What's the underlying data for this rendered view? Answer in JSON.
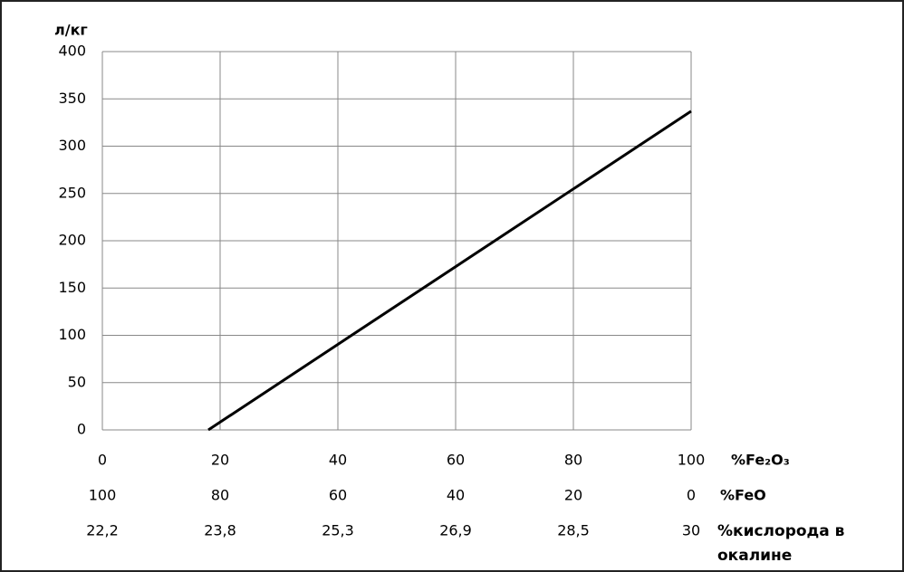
{
  "chart_data": {
    "type": "line",
    "ylabel": "л/кг",
    "xlabel": "%Fe₂O₃",
    "series": [
      {
        "x": [
          18,
          100
        ],
        "values": [
          0,
          337
        ],
        "color": "#000000"
      }
    ],
    "xlim": [
      0,
      100
    ],
    "xticks": [
      0,
      20,
      40,
      60,
      80,
      100
    ],
    "ylim": [
      0,
      400
    ],
    "yticks": [
      0,
      50,
      100,
      150,
      200,
      250,
      300,
      350,
      400
    ],
    "grid": true,
    "extra_x_axes": [
      {
        "label": "%FeO",
        "ticks": [
          {
            "value": 0,
            "label": "100"
          },
          {
            "value": 20,
            "label": "80"
          },
          {
            "value": 40,
            "label": "60"
          },
          {
            "value": 60,
            "label": "40"
          },
          {
            "value": 80,
            "label": "20"
          },
          {
            "value": 100,
            "label": "0"
          }
        ]
      },
      {
        "label": "%кислорода в окалине",
        "ticks": [
          {
            "value": 0,
            "label": "22,2"
          },
          {
            "value": 20,
            "label": "23,8"
          },
          {
            "value": 40,
            "label": "25,3"
          },
          {
            "value": 60,
            "label": "26,9"
          },
          {
            "value": 80,
            "label": "28,5"
          },
          {
            "value": 100,
            "label": "30"
          }
        ]
      }
    ]
  }
}
